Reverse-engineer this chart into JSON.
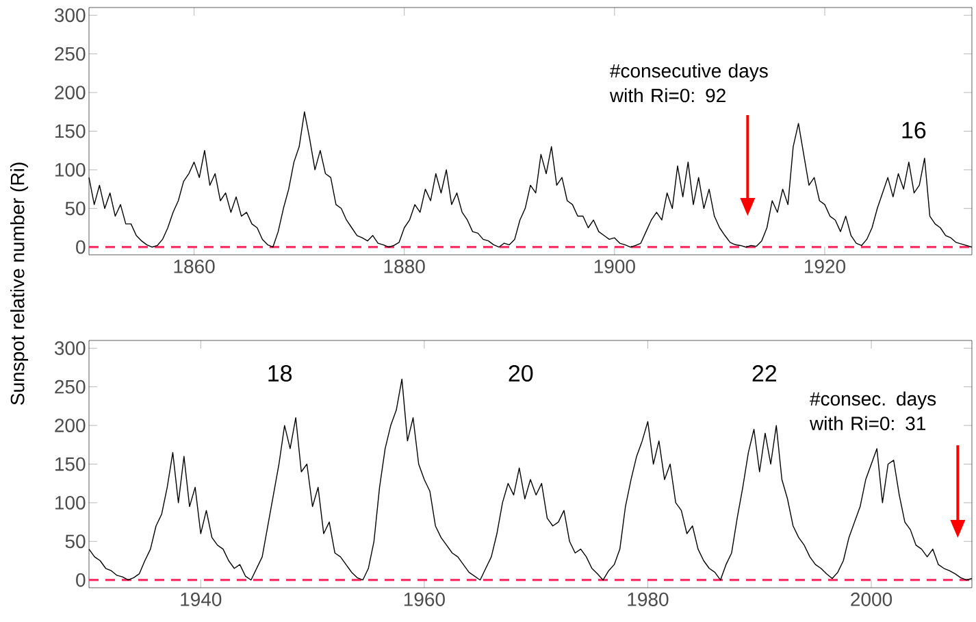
{
  "chart_data": [
    {
      "type": "line",
      "color": "#000000",
      "ylabel": "Sunspot relative number (Ri)",
      "xlim": [
        1850,
        1934
      ],
      "ylim": [
        -10,
        310
      ],
      "xticks": [
        1860,
        1880,
        1900,
        1920
      ],
      "yticks": [
        0,
        50,
        100,
        150,
        200,
        250,
        300
      ],
      "x": [
        1850,
        1850.5,
        1851,
        1851.5,
        1852,
        1852.5,
        1853,
        1853.5,
        1854,
        1854.5,
        1855,
        1855.5,
        1856,
        1856.5,
        1857,
        1857.5,
        1858,
        1858.5,
        1859,
        1859.5,
        1860,
        1860.5,
        1861,
        1861.5,
        1862,
        1862.5,
        1863,
        1863.5,
        1864,
        1864.5,
        1865,
        1865.5,
        1866,
        1866.5,
        1867,
        1867.5,
        1868,
        1868.5,
        1869,
        1869.5,
        1870,
        1870.5,
        1871,
        1871.5,
        1872,
        1872.5,
        1873,
        1873.5,
        1874,
        1874.5,
        1875,
        1875.5,
        1876,
        1876.5,
        1877,
        1877.5,
        1878,
        1878.5,
        1879,
        1879.5,
        1880,
        1880.5,
        1881,
        1881.5,
        1882,
        1882.5,
        1883,
        1883.5,
        1884,
        1884.5,
        1885,
        1885.5,
        1886,
        1886.5,
        1887,
        1887.5,
        1888,
        1888.5,
        1889,
        1889.5,
        1890,
        1890.5,
        1891,
        1891.5,
        1892,
        1892.5,
        1893,
        1893.5,
        1894,
        1894.5,
        1895,
        1895.5,
        1896,
        1896.5,
        1897,
        1897.5,
        1898,
        1898.5,
        1899,
        1899.5,
        1900,
        1900.5,
        1901,
        1901.5,
        1902,
        1902.5,
        1903,
        1903.5,
        1904,
        1904.5,
        1905,
        1905.5,
        1906,
        1906.5,
        1907,
        1907.5,
        1908,
        1908.5,
        1909,
        1909.5,
        1910,
        1910.5,
        1911,
        1911.5,
        1912,
        1912.5,
        1913,
        1913.5,
        1914,
        1914.5,
        1915,
        1915.5,
        1916,
        1916.5,
        1917,
        1917.5,
        1918,
        1918.5,
        1919,
        1919.5,
        1920,
        1920.5,
        1921,
        1921.5,
        1922,
        1922.5,
        1923,
        1923.5,
        1924,
        1924.5,
        1925,
        1925.5,
        1926,
        1926.5,
        1927,
        1927.5,
        1928,
        1928.5,
        1929,
        1929.5,
        1930,
        1930.5,
        1931,
        1931.5,
        1932,
        1932.5,
        1933,
        1933.5,
        1934
      ],
      "values": [
        90,
        55,
        80,
        50,
        70,
        40,
        55,
        30,
        30,
        15,
        8,
        3,
        0,
        2,
        10,
        25,
        45,
        60,
        85,
        95,
        110,
        90,
        125,
        80,
        95,
        60,
        70,
        45,
        65,
        40,
        45,
        30,
        25,
        10,
        3,
        0,
        20,
        50,
        75,
        110,
        130,
        175,
        140,
        100,
        125,
        95,
        90,
        55,
        50,
        35,
        25,
        15,
        12,
        8,
        15,
        5,
        3,
        0,
        2,
        6,
        25,
        35,
        55,
        45,
        75,
        60,
        95,
        70,
        100,
        55,
        70,
        45,
        35,
        20,
        18,
        10,
        8,
        3,
        0,
        5,
        3,
        10,
        35,
        50,
        80,
        70,
        120,
        95,
        130,
        80,
        90,
        60,
        55,
        40,
        40,
        25,
        35,
        20,
        15,
        10,
        12,
        5,
        3,
        0,
        2,
        5,
        20,
        35,
        45,
        35,
        70,
        50,
        105,
        65,
        110,
        55,
        90,
        50,
        75,
        40,
        25,
        15,
        6,
        3,
        2,
        0,
        2,
        1,
        8,
        25,
        60,
        45,
        75,
        55,
        130,
        160,
        120,
        80,
        90,
        60,
        55,
        40,
        35,
        20,
        40,
        15,
        5,
        2,
        10,
        25,
        50,
        70,
        90,
        65,
        95,
        75,
        110,
        70,
        80,
        115,
        40,
        30,
        25,
        15,
        12,
        6,
        4,
        2,
        0
      ],
      "ref_lines": [
        {
          "axis": "y",
          "value": 0,
          "color": "#ff3366",
          "line_style": "dashed"
        }
      ],
      "annotations": [
        "#consecutive days with Ri=0: 92",
        "16"
      ]
    },
    {
      "type": "line",
      "color": "#000000",
      "xlim": [
        1930,
        2009
      ],
      "ylim": [
        -10,
        310
      ],
      "xticks": [
        1940,
        1960,
        1980,
        2000
      ],
      "yticks": [
        0,
        50,
        100,
        150,
        200,
        250,
        300
      ],
      "x": [
        1930,
        1930.5,
        1931,
        1931.5,
        1932,
        1932.5,
        1933,
        1933.5,
        1934,
        1934.5,
        1935,
        1935.5,
        1936,
        1936.5,
        1937,
        1937.5,
        1938,
        1938.5,
        1939,
        1939.5,
        1940,
        1940.5,
        1941,
        1941.5,
        1942,
        1942.5,
        1943,
        1943.5,
        1944,
        1944.5,
        1945,
        1945.5,
        1946,
        1946.5,
        1947,
        1947.5,
        1948,
        1948.5,
        1949,
        1949.5,
        1950,
        1950.5,
        1951,
        1951.5,
        1952,
        1952.5,
        1953,
        1953.5,
        1954,
        1954.5,
        1955,
        1955.5,
        1956,
        1956.5,
        1957,
        1957.5,
        1958,
        1958.5,
        1959,
        1959.5,
        1960,
        1960.5,
        1961,
        1961.5,
        1962,
        1962.5,
        1963,
        1963.5,
        1964,
        1964.5,
        1965,
        1965.5,
        1966,
        1966.5,
        1967,
        1967.5,
        1968,
        1968.5,
        1969,
        1969.5,
        1970,
        1970.5,
        1971,
        1971.5,
        1972,
        1972.5,
        1973,
        1973.5,
        1974,
        1974.5,
        1975,
        1975.5,
        1976,
        1976.5,
        1977,
        1977.5,
        1978,
        1978.5,
        1979,
        1979.5,
        1980,
        1980.5,
        1981,
        1981.5,
        1982,
        1982.5,
        1983,
        1983.5,
        1984,
        1984.5,
        1985,
        1985.5,
        1986,
        1986.5,
        1987,
        1987.5,
        1988,
        1988.5,
        1989,
        1989.5,
        1990,
        1990.5,
        1991,
        1991.5,
        1992,
        1992.5,
        1993,
        1993.5,
        1994,
        1994.5,
        1995,
        1995.5,
        1996,
        1996.5,
        1997,
        1997.5,
        1998,
        1998.5,
        1999,
        1999.5,
        2000,
        2000.5,
        2001,
        2001.5,
        2002,
        2002.5,
        2003,
        2003.5,
        2004,
        2004.5,
        2005,
        2005.5,
        2006,
        2006.5,
        2007,
        2007.5,
        2008,
        2008.5,
        2009
      ],
      "values": [
        40,
        30,
        25,
        15,
        12,
        6,
        4,
        0,
        3,
        8,
        25,
        40,
        70,
        85,
        120,
        165,
        100,
        160,
        95,
        120,
        60,
        90,
        55,
        45,
        40,
        25,
        15,
        20,
        5,
        0,
        15,
        30,
        70,
        110,
        150,
        200,
        170,
        210,
        140,
        150,
        95,
        120,
        60,
        75,
        35,
        30,
        20,
        10,
        3,
        0,
        15,
        50,
        120,
        170,
        200,
        220,
        260,
        180,
        210,
        150,
        130,
        115,
        70,
        55,
        45,
        35,
        30,
        20,
        10,
        5,
        0,
        15,
        30,
        60,
        100,
        125,
        110,
        145,
        105,
        130,
        110,
        125,
        80,
        70,
        75,
        90,
        50,
        35,
        40,
        30,
        15,
        8,
        0,
        12,
        20,
        40,
        95,
        130,
        160,
        180,
        205,
        150,
        180,
        130,
        150,
        100,
        90,
        60,
        70,
        40,
        25,
        15,
        10,
        0,
        20,
        35,
        80,
        120,
        165,
        195,
        140,
        190,
        150,
        200,
        130,
        105,
        70,
        55,
        45,
        30,
        20,
        15,
        8,
        2,
        10,
        25,
        55,
        75,
        95,
        130,
        150,
        170,
        100,
        150,
        155,
        110,
        75,
        65,
        45,
        40,
        30,
        40,
        20,
        15,
        12,
        8,
        3,
        0,
        2
      ],
      "ref_lines": [
        {
          "axis": "y",
          "value": 0,
          "color": "#ff3366",
          "line_style": "dashed"
        }
      ],
      "annotations": [
        "18",
        "20",
        "22",
        "#consec. days with Ri=0: 31"
      ]
    }
  ]
}
